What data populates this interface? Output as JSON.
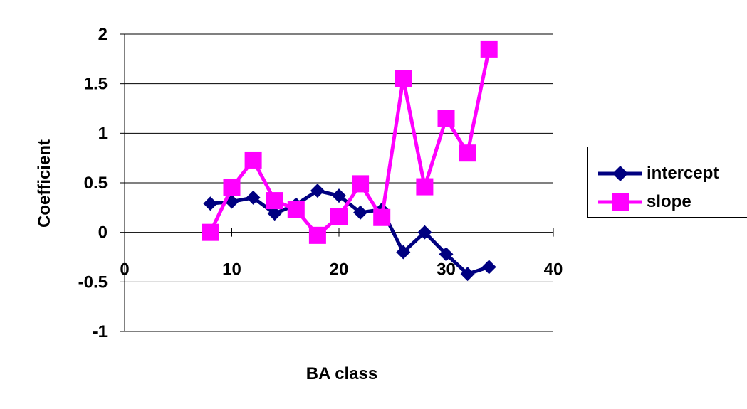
{
  "chart_data": {
    "type": "line",
    "title": "",
    "xlabel": "BA class",
    "ylabel": "Coefficient",
    "xlim": [
      0,
      40
    ],
    "ylim": [
      -1,
      2
    ],
    "x_ticks": [
      0,
      10,
      20,
      30,
      40
    ],
    "y_ticks": [
      2,
      1.5,
      1,
      0.5,
      0,
      -0.5,
      -1
    ],
    "x_tick_labels": [
      "0",
      "10",
      "20",
      "30",
      "40"
    ],
    "y_tick_labels": [
      "2",
      "1.5",
      "1",
      "0.5",
      "0",
      "-0.5",
      "-1"
    ],
    "grid": "horizontal",
    "legend_position": "right",
    "series": [
      {
        "name": "intercept",
        "color": "#000080",
        "marker": "diamond",
        "x": [
          8,
          10,
          12,
          14,
          16,
          18,
          20,
          22,
          24,
          26,
          28,
          30,
          32,
          34
        ],
        "values": [
          0.29,
          0.31,
          0.35,
          0.19,
          0.28,
          0.42,
          0.37,
          0.2,
          0.23,
          -0.2,
          0.0,
          -0.22,
          -0.42,
          -0.35
        ]
      },
      {
        "name": "slope",
        "color": "#FF00FF",
        "marker": "square",
        "x": [
          8,
          10,
          12,
          14,
          16,
          18,
          20,
          22,
          24,
          26,
          28,
          30,
          32,
          34
        ],
        "values": [
          0.0,
          0.45,
          0.73,
          0.32,
          0.23,
          -0.03,
          0.16,
          0.49,
          0.15,
          1.55,
          0.46,
          1.15,
          0.8,
          1.85
        ]
      }
    ]
  }
}
